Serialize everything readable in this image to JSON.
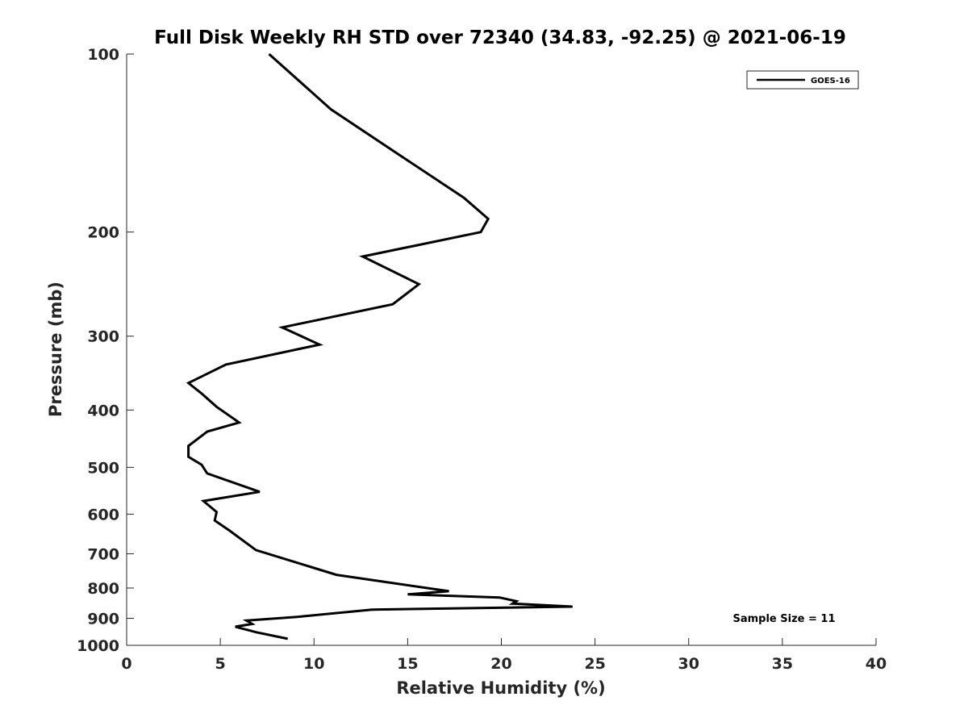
{
  "chart_data": {
    "type": "line",
    "title": "Full Disk Weekly RH STD over 72340 (34.83, -92.25) @ 2021-06-19",
    "xlabel": "Relative Humidity (%)",
    "ylabel": "Pressure (mb)",
    "xlim": [
      0,
      40
    ],
    "ylim": [
      100,
      1000
    ],
    "yscale": "log",
    "y_reversed": true,
    "xticks": [
      0,
      5,
      10,
      15,
      20,
      25,
      30,
      35,
      40
    ],
    "yticks": [
      100,
      200,
      300,
      400,
      500,
      600,
      700,
      800,
      900,
      1000
    ],
    "grid": false,
    "legend_position": "top-right",
    "annotation": "Sample Size = 11",
    "series": [
      {
        "name": "GOES-16",
        "color": "#000000",
        "x": [
          7.6,
          10.9,
          14.4,
          18.0,
          19.3,
          18.9,
          12.6,
          15.6,
          14.2,
          8.3,
          10.3,
          5.3,
          3.3,
          4.0,
          4.8,
          6.0,
          4.3,
          3.3,
          3.3,
          4.0,
          4.3,
          7.1,
          4.1,
          4.8,
          4.7,
          5.5,
          6.9,
          11.2,
          17.2,
          15.0,
          19.9,
          20.8,
          20.6,
          23.8,
          13.1,
          9.1,
          6.4,
          6.7,
          5.8,
          6.9,
          8.6
        ],
        "y": [
          100,
          124,
          147,
          175,
          190,
          200,
          220,
          245,
          265,
          290,
          310,
          335,
          360,
          375,
          395,
          420,
          435,
          460,
          480,
          495,
          512,
          550,
          570,
          595,
          615,
          640,
          690,
          760,
          810,
          820,
          830,
          842,
          850,
          860,
          870,
          895,
          908,
          920,
          930,
          950,
          975
        ]
      }
    ]
  }
}
